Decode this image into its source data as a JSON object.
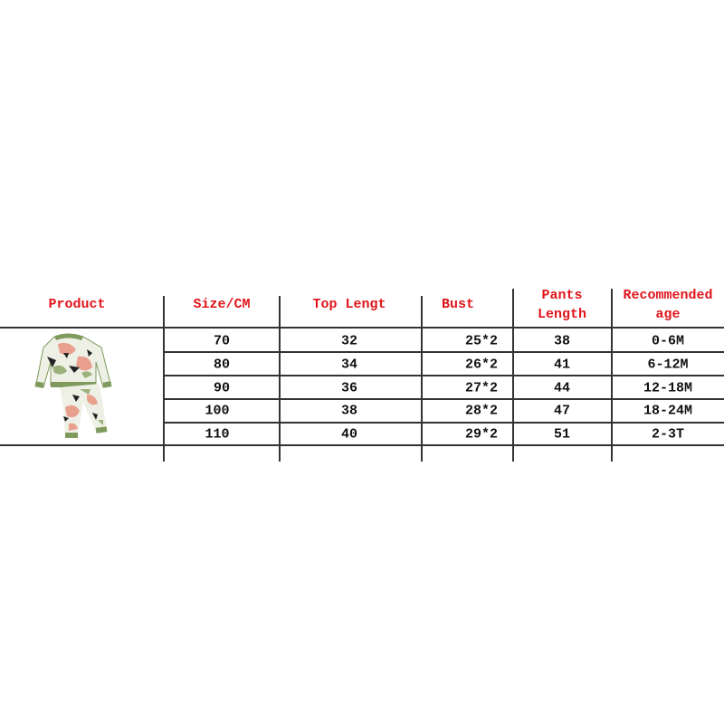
{
  "table": {
    "headers": {
      "product": "Product",
      "size": "Size/CM",
      "top_length": "Top Lengt",
      "bust": "Bust",
      "pants_length_1": "Pants",
      "pants_length_2": "Length",
      "age_1": "Recommended",
      "age_2": "age"
    },
    "rows": [
      {
        "size": "70",
        "top_length": "32",
        "bust": "25*2",
        "pants_length": "38",
        "age": "0-6M"
      },
      {
        "size": "80",
        "top_length": "34",
        "bust": "26*2",
        "pants_length": "41",
        "age": "6-12M"
      },
      {
        "size": "90",
        "top_length": "36",
        "bust": "27*2",
        "pants_length": "44",
        "age": "12-18M"
      },
      {
        "size": "100",
        "top_length": "38",
        "bust": "28*2",
        "pants_length": "47",
        "age": "18-24M"
      },
      {
        "size": "110",
        "top_length": "40",
        "bust": "29*2",
        "pants_length": "51",
        "age": "2-3T"
      }
    ]
  },
  "colors": {
    "header_text": "#e0141a",
    "body_text": "#111111",
    "grid": "#333333",
    "garment_green": "#7f9a5c",
    "garment_pink": "#eaa08e"
  }
}
